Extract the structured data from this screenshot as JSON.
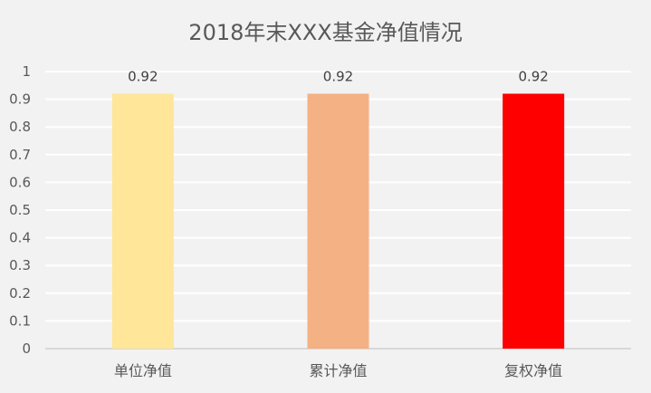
{
  "chart_data": {
    "type": "bar",
    "title": "2018年末XXX基金净值情况",
    "categories": [
      "单位净值",
      "累计净值",
      "复权净值"
    ],
    "values": [
      0.92,
      0.92,
      0.92
    ],
    "data_labels": [
      "0.92",
      "0.92",
      "0.92"
    ],
    "bar_colors": [
      "#ffe699",
      "#f4b183",
      "#ff0000"
    ],
    "ylim": [
      0,
      1
    ],
    "yticks": [
      "0",
      "0.1",
      "0.2",
      "0.3",
      "0.4",
      "0.5",
      "0.6",
      "0.7",
      "0.8",
      "0.9",
      "1"
    ],
    "xlabel": "",
    "ylabel": "",
    "grid": true,
    "legend": false
  }
}
